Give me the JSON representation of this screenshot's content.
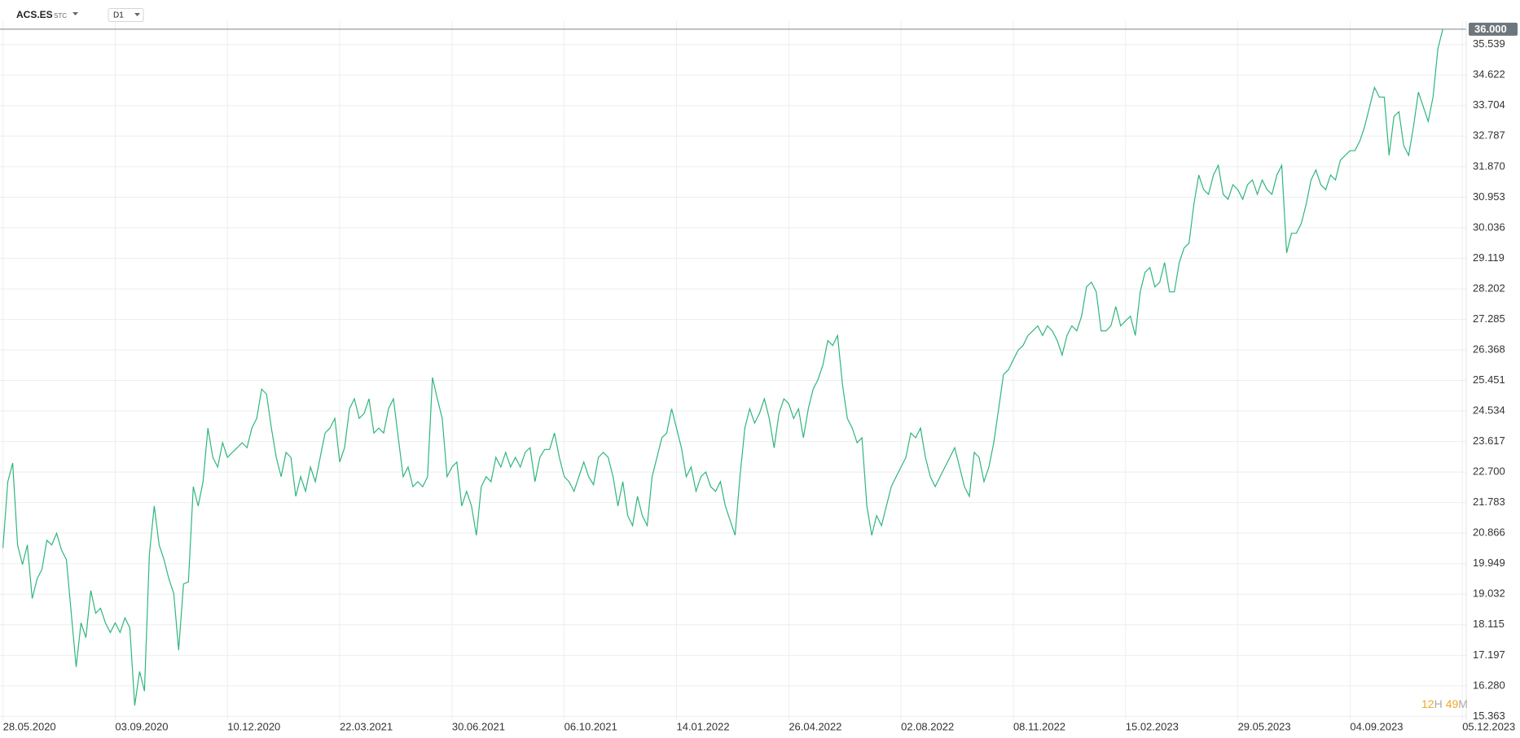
{
  "header": {
    "symbol": "ACS.ES",
    "market": "STC",
    "interval": "D1"
  },
  "timer": {
    "hours": 12,
    "hours_unit": "H",
    "minutes": 49,
    "minutes_unit": "M"
  },
  "chart_data": {
    "type": "line",
    "last_price": {
      "value": 36,
      "label": "36.000"
    },
    "grid": true,
    "xlim": [
      0,
      300.4
    ],
    "ylim": [
      15.25,
      36.24
    ],
    "xticks": [
      {
        "value": 0,
        "label": "28.05.2020"
      },
      {
        "value": 23,
        "label": "03.09.2020"
      },
      {
        "value": 46,
        "label": "10.12.2020"
      },
      {
        "value": 69,
        "label": "22.03.2021"
      },
      {
        "value": 92,
        "label": "30.06.2021"
      },
      {
        "value": 115,
        "label": "06.10.2021"
      },
      {
        "value": 138,
        "label": "14.01.2022"
      },
      {
        "value": 161,
        "label": "26.04.2022"
      },
      {
        "value": 184,
        "label": "02.08.2022"
      },
      {
        "value": 207,
        "label": "08.11.2022"
      },
      {
        "value": 230,
        "label": "15.02.2023"
      },
      {
        "value": 253,
        "label": "29.05.2023"
      },
      {
        "value": 276,
        "label": "04.09.2023"
      },
      {
        "value": 299,
        "label": "05.12.2023"
      }
    ],
    "yticks": [
      15.363,
      {
        "value": 16.28,
        "label": "16.280"
      },
      17.197,
      18.115,
      19.032,
      19.949,
      20.866,
      21.783,
      {
        "value": 22.7,
        "label": "22.700"
      },
      23.617,
      24.534,
      25.451,
      26.368,
      27.285,
      28.202,
      29.119,
      30.036,
      30.953,
      {
        "value": 31.87,
        "label": "31.870"
      },
      32.787,
      33.704,
      34.622,
      35.539
    ],
    "series": [
      {
        "name": "ACS.ES",
        "color": "#2fb67c",
        "x": [
          0,
          1,
          2,
          3,
          4,
          5,
          6,
          7,
          8,
          9,
          10,
          11,
          12,
          13,
          14,
          15,
          16,
          17,
          18,
          19,
          20,
          21,
          22,
          23,
          24,
          25,
          26,
          27,
          28,
          29,
          30,
          31,
          32,
          33,
          34,
          35,
          36,
          37,
          38,
          39,
          40,
          41,
          42,
          43,
          44,
          45,
          46,
          47,
          48,
          49,
          50,
          51,
          52,
          53,
          54,
          55,
          56,
          57,
          58,
          59,
          60,
          61,
          62,
          63,
          64,
          65,
          66,
          67,
          68,
          69,
          70,
          71,
          72,
          73,
          74,
          75,
          76,
          77,
          78,
          79,
          80,
          81,
          82,
          83,
          84,
          85,
          86,
          87,
          88,
          89,
          90,
          91,
          92,
          93,
          94,
          95,
          96,
          97,
          98,
          99,
          100,
          101,
          102,
          103,
          104,
          105,
          106,
          107,
          108,
          109,
          110,
          111,
          112,
          113,
          114,
          115,
          116,
          117,
          118,
          119,
          120,
          121,
          122,
          123,
          124,
          125,
          126,
          127,
          128,
          129,
          130,
          131,
          132,
          133,
          134,
          135,
          136,
          137,
          138,
          139,
          140,
          141,
          142,
          143,
          144,
          145,
          146,
          147,
          148,
          149,
          150,
          151,
          152,
          153,
          154,
          155,
          156,
          157,
          158,
          159,
          160,
          161,
          162,
          163,
          164,
          165,
          166,
          167,
          168,
          169,
          170,
          171,
          172,
          173,
          174,
          175,
          176,
          177,
          178,
          179,
          180,
          181,
          182,
          183,
          184,
          185,
          186,
          187,
          188,
          189,
          190,
          191,
          192,
          193,
          194,
          195,
          196,
          197,
          198,
          199,
          200,
          201,
          202,
          203,
          204,
          205,
          206,
          207,
          208,
          209,
          210,
          211,
          212,
          213,
          214,
          215,
          216,
          217,
          218,
          219,
          220,
          221,
          222,
          223,
          224,
          225,
          226,
          227,
          228,
          229,
          230,
          231,
          232,
          233,
          234,
          235,
          236,
          237,
          238,
          239,
          240,
          241,
          242,
          243,
          244,
          245,
          246,
          247,
          248,
          249,
          250,
          251,
          252,
          253,
          254,
          255,
          256,
          257,
          258,
          259,
          260,
          261,
          262,
          263,
          264,
          265,
          266,
          267,
          268,
          269,
          270,
          271,
          272,
          273,
          274,
          275,
          276,
          277,
          278,
          279,
          280,
          281,
          282,
          283,
          284,
          285,
          286,
          287,
          288,
          289,
          290,
          291,
          292,
          293,
          294,
          295
        ],
        "values": [
          20.42,
          22.41,
          22.97,
          20.51,
          19.92,
          20.51,
          18.9,
          19.49,
          19.78,
          20.65,
          20.51,
          20.86,
          20.36,
          20.07,
          18.46,
          16.85,
          18.17,
          17.73,
          19.14,
          18.46,
          18.61,
          18.17,
          17.88,
          18.17,
          17.88,
          18.32,
          18.02,
          15.69,
          16.71,
          16.12,
          20.22,
          21.68,
          20.51,
          20.07,
          19.49,
          19.05,
          17.35,
          19.34,
          19.4,
          22.26,
          21.68,
          22.41,
          24.02,
          23.14,
          22.85,
          23.58,
          23.14,
          23.29,
          23.43,
          23.58,
          23.43,
          24.02,
          24.31,
          25.19,
          25.04,
          24.02,
          23.14,
          22.56,
          23.29,
          23.14,
          21.97,
          22.56,
          22.12,
          22.85,
          22.41,
          23.14,
          23.87,
          24.02,
          24.31,
          23.0,
          23.43,
          24.6,
          24.9,
          24.31,
          24.46,
          24.9,
          23.87,
          24.02,
          23.87,
          24.6,
          24.9,
          23.73,
          22.56,
          22.85,
          22.26,
          22.41,
          22.26,
          22.56,
          25.54,
          24.9,
          24.31,
          22.56,
          22.85,
          23.0,
          21.68,
          22.12,
          21.68,
          20.8,
          22.26,
          22.56,
          22.41,
          23.14,
          22.85,
          23.29,
          22.85,
          23.14,
          22.85,
          23.29,
          23.43,
          22.41,
          23.14,
          23.38,
          23.38,
          23.87,
          23.14,
          22.56,
          22.41,
          22.12,
          22.56,
          23.0,
          22.56,
          22.32,
          23.14,
          23.29,
          23.14,
          22.56,
          21.68,
          22.41,
          21.39,
          21.09,
          21.97,
          21.39,
          21.09,
          22.56,
          23.14,
          23.73,
          23.87,
          24.6,
          24.02,
          23.43,
          22.56,
          22.85,
          22.12,
          22.56,
          22.7,
          22.26,
          22.12,
          22.41,
          21.68,
          21.24,
          20.8,
          22.56,
          24.02,
          24.6,
          24.17,
          24.46,
          24.9,
          24.31,
          23.43,
          24.46,
          24.9,
          24.75,
          24.31,
          24.6,
          23.73,
          24.6,
          25.19,
          25.48,
          25.92,
          26.65,
          26.5,
          26.8,
          25.33,
          24.31,
          24.02,
          23.58,
          23.73,
          21.68,
          20.8,
          21.39,
          21.09,
          21.68,
          22.26,
          22.56,
          22.85,
          23.14,
          23.87,
          23.73,
          24.02,
          23.14,
          22.56,
          22.26,
          22.56,
          22.85,
          23.14,
          23.43,
          22.85,
          22.26,
          21.97,
          23.29,
          23.14,
          22.41,
          22.85,
          23.58,
          24.6,
          25.63,
          25.77,
          26.07,
          26.36,
          26.5,
          26.8,
          26.94,
          27.09,
          26.8,
          27.09,
          26.94,
          26.65,
          26.21,
          26.8,
          27.09,
          26.94,
          27.38,
          28.26,
          28.4,
          28.11,
          26.94,
          26.94,
          27.09,
          27.67,
          27.09,
          27.24,
          27.38,
          26.8,
          28.11,
          28.7,
          28.84,
          28.26,
          28.4,
          28.99,
          28.11,
          28.11,
          28.99,
          29.43,
          29.57,
          30.74,
          31.62,
          31.18,
          31.04,
          31.62,
          31.91,
          31.04,
          30.89,
          31.33,
          31.18,
          30.89,
          31.33,
          31.47,
          31.04,
          31.47,
          31.18,
          31.04,
          31.62,
          31.91,
          29.28,
          29.87,
          29.87,
          30.16,
          30.74,
          31.47,
          31.77,
          31.33,
          31.18,
          31.62,
          31.47,
          32.06,
          32.21,
          32.35,
          32.35,
          32.64,
          33.08,
          33.67,
          34.25,
          33.96,
          33.96,
          32.21,
          33.38,
          33.52,
          32.5,
          32.21,
          33.08,
          34.11,
          33.67,
          33.23,
          33.96,
          35.42,
          36
        ]
      }
    ]
  }
}
